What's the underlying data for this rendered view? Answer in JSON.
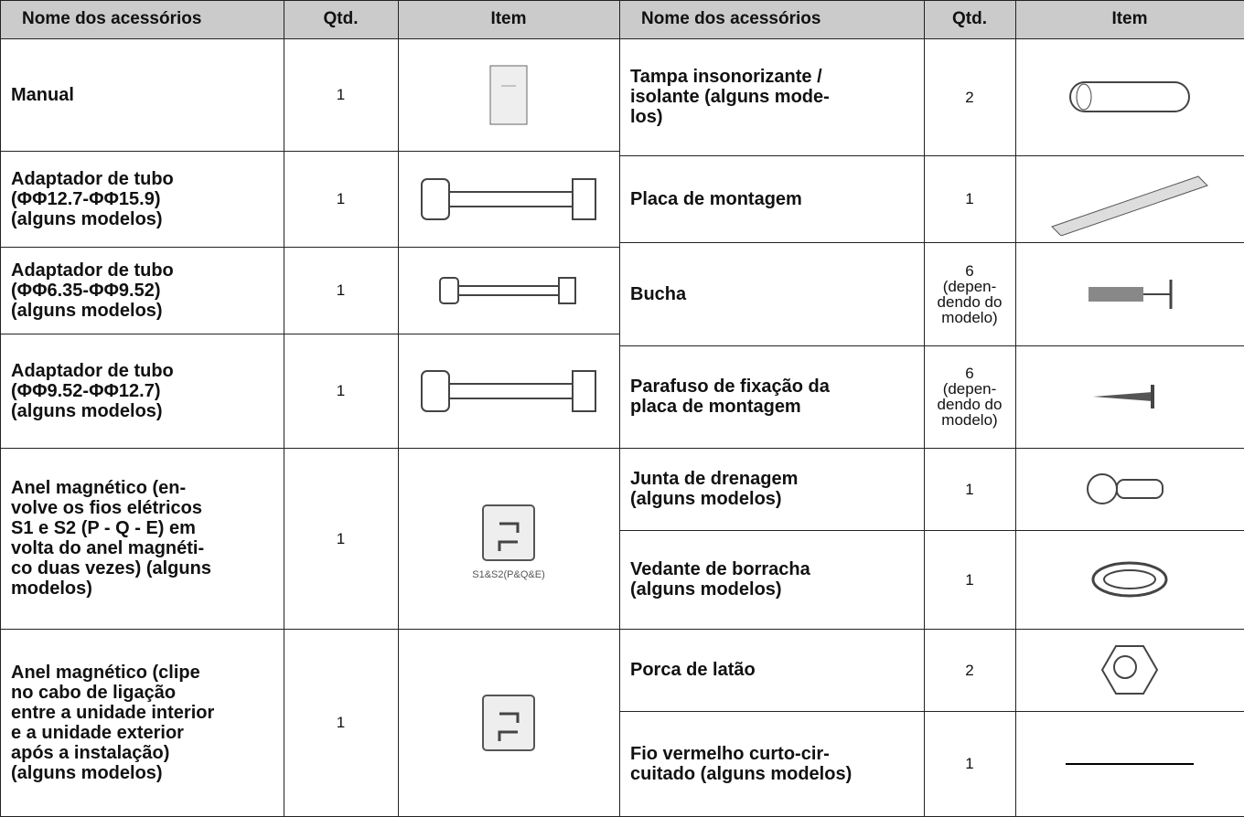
{
  "table": {
    "left_header": [
      "Nome dos acessórios",
      "Qtd.",
      "Item"
    ],
    "right_header": [
      "Nome dos acessórios",
      "Qtd.",
      "Item"
    ],
    "left_rows": [
      {
        "name": [
          "Manual"
        ],
        "qty": [
          "1"
        ]
      },
      {
        "name": [
          "Adaptador de tubo",
          "(ΦΦ12.7-ΦΦ15.9)",
          "(alguns modelos)"
        ],
        "qty": [
          "1"
        ]
      },
      {
        "name": [
          "Adaptador de tubo",
          "(ΦΦ6.35-ΦΦ9.52)",
          "(alguns modelos)"
        ],
        "qty": [
          "1"
        ]
      },
      {
        "name": [
          "Adaptador de tubo",
          "(ΦΦ9.52-ΦΦ12.7)",
          "(alguns modelos)"
        ],
        "qty": [
          "1"
        ]
      },
      {
        "name": [
          "Anel magnético (en-",
          "volve os fios elétricos",
          "S1 e S2 (P - Q - E) em",
          "volta do anel magnéti-",
          "co duas vezes) (alguns",
          "modelos)"
        ],
        "qty": [
          "1"
        ],
        "item_label": "S1&S2(P&Q&E)"
      },
      {
        "name": [
          "Anel magnético (clipe",
          "no cabo de ligação",
          "entre a unidade interior",
          "e a unidade exterior",
          "após a instalação)",
          "(alguns modelos)"
        ],
        "qty": [
          "1"
        ]
      }
    ],
    "right_rows": [
      {
        "name": [
          "Tampa insonorizante /",
          "isolante (alguns mode-",
          "los)"
        ],
        "qty": [
          "2"
        ]
      },
      {
        "name": [
          "Placa de montagem"
        ],
        "qty": [
          "1"
        ]
      },
      {
        "name": [
          "Bucha"
        ],
        "qty": [
          "6",
          "(depen-",
          "dendo do",
          "modelo)"
        ]
      },
      {
        "name": [
          "Parafuso de fixação da",
          "placa de montagem"
        ],
        "qty": [
          "6",
          "(depen-",
          "dendo do",
          "modelo)"
        ]
      },
      {
        "name": [
          "Junta de drenagem",
          "(alguns modelos)"
        ],
        "qty": [
          "1"
        ]
      },
      {
        "name": [
          "Vedante de borracha",
          "(alguns modelos)"
        ],
        "qty": [
          "1"
        ]
      },
      {
        "name": [
          "Porca de latão"
        ],
        "qty": [
          "2"
        ]
      },
      {
        "name": [
          "Fio vermelho curto-cir-",
          "cuitado (alguns modelos)"
        ],
        "qty": [
          "1"
        ]
      }
    ]
  }
}
